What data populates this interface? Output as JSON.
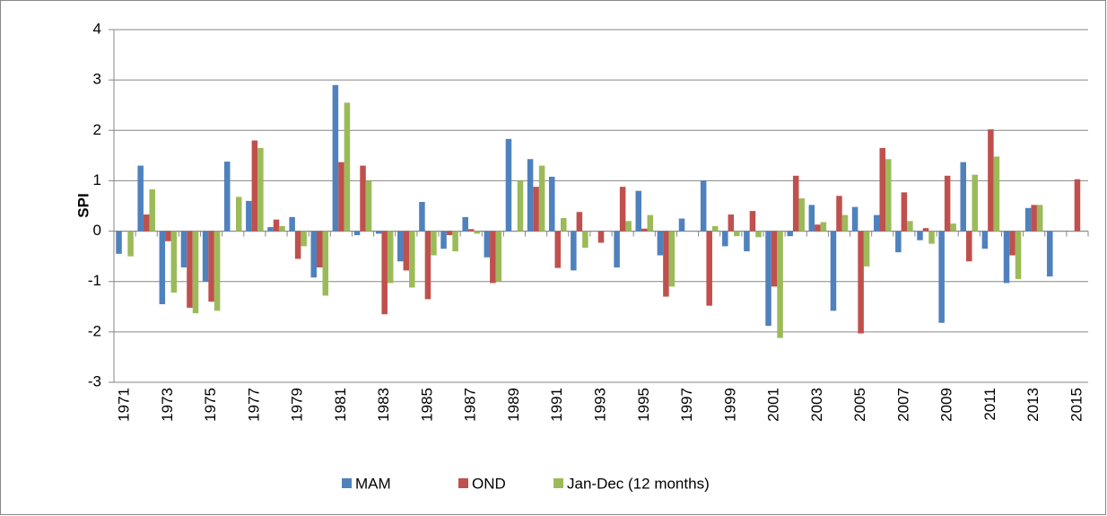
{
  "chart_data": {
    "type": "bar",
    "y_label": "SPI",
    "categories": [
      "1971",
      null,
      "1973",
      null,
      "1975",
      null,
      "1977",
      null,
      "1979",
      null,
      "1981",
      null,
      "1983",
      null,
      "1985",
      null,
      "1987",
      null,
      "1989",
      null,
      "1991",
      null,
      "1993",
      null,
      "1995",
      null,
      "1997",
      null,
      "1999",
      null,
      "2001",
      null,
      "2003",
      null,
      "2005",
      null,
      "2007",
      null,
      "2009",
      null,
      "2011",
      null,
      "2013",
      null,
      "2015"
    ],
    "series": [
      {
        "name": "MAM",
        "color": "#4f81bd",
        "values": [
          -0.45,
          1.3,
          -1.45,
          -0.72,
          -1.0,
          1.38,
          0.6,
          0.08,
          0.28,
          -0.92,
          2.9,
          -0.08,
          -0.05,
          -0.6,
          0.58,
          -0.35,
          0.28,
          -0.52,
          1.83,
          1.43,
          1.08,
          -0.78,
          null,
          -0.72,
          0.8,
          -0.48,
          0.25,
          1.0,
          -0.3,
          -0.4,
          -1.88,
          -0.1,
          0.52,
          -1.58,
          0.48,
          0.32,
          -0.42,
          -0.18,
          -1.82,
          1.37,
          -0.35,
          -1.03,
          0.46,
          -0.9,
          null
        ]
      },
      {
        "name": "OND",
        "color": "#c0504d",
        "values": [
          null,
          0.33,
          -0.2,
          -1.52,
          -1.4,
          null,
          1.8,
          0.23,
          -0.55,
          -0.72,
          1.37,
          1.3,
          -1.65,
          -0.78,
          -1.35,
          -0.08,
          0.04,
          -1.03,
          null,
          0.88,
          -0.73,
          0.38,
          -0.23,
          0.88,
          0.05,
          -1.3,
          null,
          -1.48,
          0.33,
          0.4,
          -1.1,
          1.1,
          0.13,
          0.7,
          -2.03,
          1.65,
          0.77,
          0.06,
          1.1,
          -0.6,
          2.02,
          -0.48,
          0.52,
          null,
          1.03
        ]
      },
      {
        "name": "Jan-Dec (12 months)",
        "color": "#9bbb59",
        "values": [
          -0.5,
          0.83,
          -1.22,
          -1.63,
          -1.58,
          0.68,
          1.65,
          0.1,
          -0.3,
          -1.28,
          2.55,
          1.0,
          -1.03,
          -1.12,
          -0.48,
          -0.4,
          -0.05,
          -1.0,
          1.0,
          1.3,
          0.26,
          -0.33,
          null,
          0.2,
          0.32,
          -1.1,
          null,
          0.1,
          -0.1,
          -0.12,
          -2.12,
          0.65,
          0.18,
          0.32,
          -0.7,
          1.43,
          0.2,
          -0.25,
          0.15,
          1.12,
          1.48,
          -0.95,
          0.52,
          null,
          null
        ]
      }
    ],
    "ylim": [
      -3,
      4
    ],
    "yticks": [
      -3,
      -2,
      -1,
      0,
      1,
      2,
      3,
      4
    ],
    "grid": true,
    "legend": "bottom"
  }
}
